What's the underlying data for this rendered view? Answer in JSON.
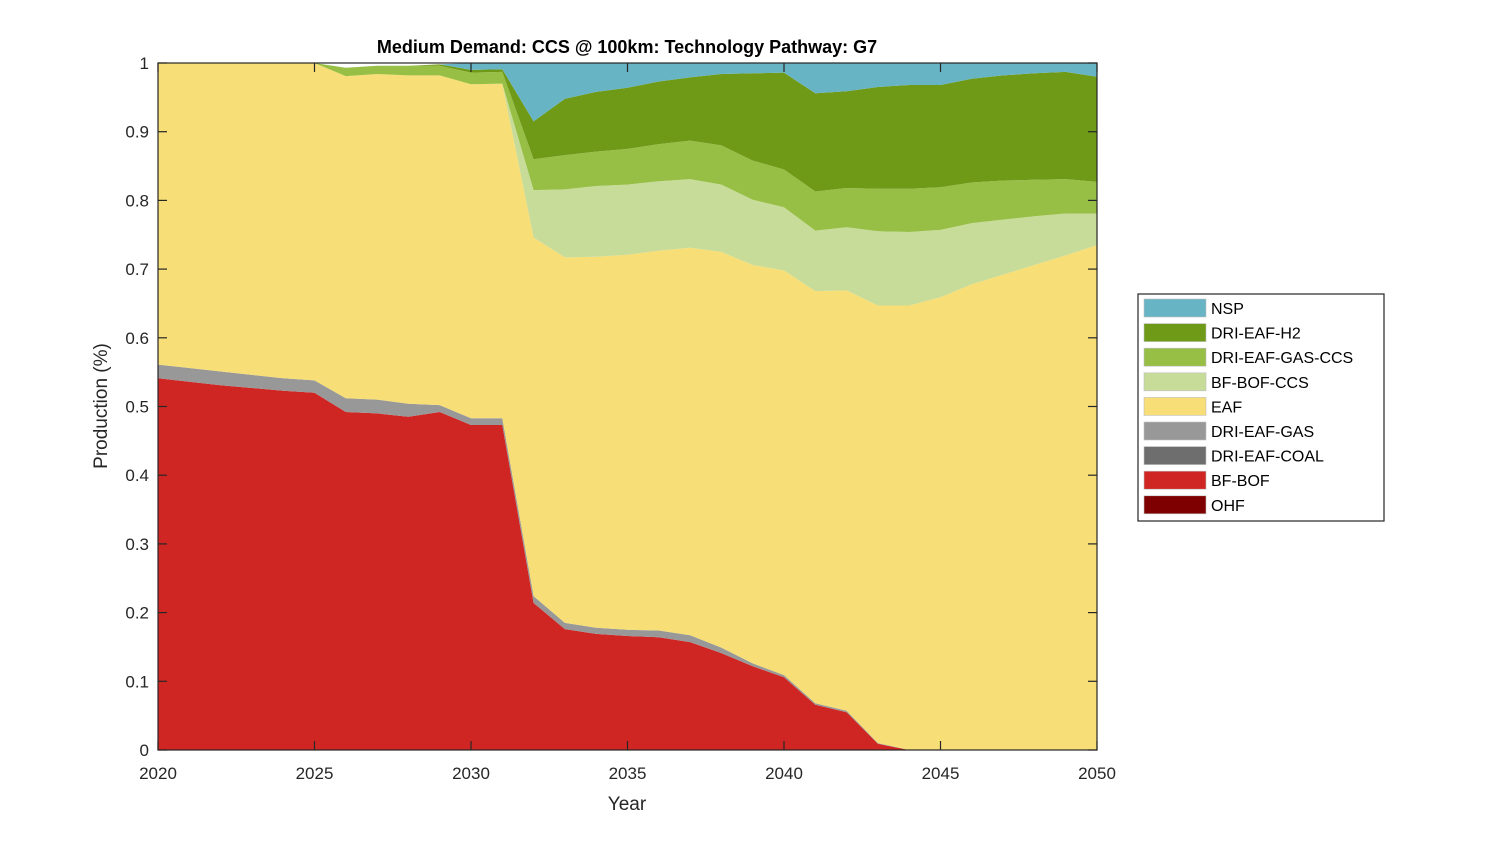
{
  "chart_data": {
    "type": "area",
    "stacked": true,
    "title": "Medium Demand: CCS @ 100km: Technology Pathway: G7",
    "xlabel": "Year",
    "ylabel": "Production (%)",
    "xlim": [
      2020,
      2050
    ],
    "ylim": [
      0,
      1
    ],
    "xticks": [
      2020,
      2025,
      2030,
      2035,
      2040,
      2045,
      2050
    ],
    "xtick_labels": [
      "2020",
      "2025",
      "2030",
      "2035",
      "2040",
      "2045",
      "2050"
    ],
    "yticks": [
      0,
      0.1,
      0.2,
      0.3,
      0.4,
      0.5,
      0.6,
      0.7,
      0.8,
      0.9,
      1
    ],
    "ytick_labels": [
      "0",
      "0.1",
      "0.2",
      "0.3",
      "0.4",
      "0.5",
      "0.6",
      "0.7",
      "0.8",
      "0.9",
      "1"
    ],
    "grid": false,
    "legend_position": "right",
    "x": [
      2020,
      2021,
      2022,
      2023,
      2024,
      2025,
      2026,
      2027,
      2028,
      2029,
      2030,
      2031,
      2032,
      2033,
      2034,
      2035,
      2036,
      2037,
      2038,
      2039,
      2040,
      2041,
      2042,
      2043,
      2044,
      2045,
      2046,
      2047,
      2048,
      2049,
      2050
    ],
    "series": [
      {
        "name": "OHF",
        "color": "#7f0000",
        "values": [
          0,
          0,
          0,
          0,
          0,
          0,
          0,
          0,
          0,
          0,
          0,
          0,
          0,
          0,
          0,
          0,
          0,
          0,
          0,
          0,
          0,
          0,
          0,
          0,
          0,
          0,
          0,
          0,
          0,
          0,
          0
        ]
      },
      {
        "name": "BF-BOF",
        "color": "#d02623",
        "values": [
          0.541,
          0.536,
          0.531,
          0.527,
          0.523,
          0.52,
          0.492,
          0.49,
          0.485,
          0.492,
          0.473,
          0.473,
          0.214,
          0.176,
          0.169,
          0.166,
          0.164,
          0.157,
          0.141,
          0.122,
          0.106,
          0.066,
          0.055,
          0.009,
          0,
          0,
          0,
          0,
          0,
          0,
          0
        ]
      },
      {
        "name": "DRI-EAF-COAL",
        "color": "#6e6e6e",
        "values": [
          0,
          0,
          0,
          0,
          0,
          0,
          0,
          0,
          0,
          0,
          0,
          0,
          0,
          0,
          0,
          0,
          0,
          0,
          0,
          0,
          0,
          0,
          0,
          0,
          0,
          0,
          0,
          0,
          0,
          0,
          0
        ]
      },
      {
        "name": "DRI-EAF-GAS",
        "color": "#989898",
        "values": [
          0.02,
          0.02,
          0.02,
          0.019,
          0.018,
          0.018,
          0.02,
          0.02,
          0.019,
          0.01,
          0.01,
          0.01,
          0.01,
          0.009,
          0.009,
          0.009,
          0.01,
          0.01,
          0.008,
          0.004,
          0.003,
          0.002,
          0.002,
          0.001,
          0,
          0,
          0,
          0,
          0,
          0,
          0
        ]
      },
      {
        "name": "EAF",
        "color": "#f7de76",
        "values": [
          0.439,
          0.444,
          0.449,
          0.454,
          0.459,
          0.462,
          0.469,
          0.474,
          0.478,
          0.48,
          0.486,
          0.487,
          0.522,
          0.532,
          0.54,
          0.546,
          0.553,
          0.564,
          0.576,
          0.58,
          0.589,
          0.6,
          0.612,
          0.637,
          0.647,
          0.659,
          0.678,
          0.692,
          0.706,
          0.72,
          0.735
        ]
      },
      {
        "name": "BF-BOF-CCS",
        "color": "#c8dc99",
        "values": [
          0,
          0,
          0,
          0,
          0,
          0,
          0,
          0,
          0,
          0,
          0,
          0,
          0.069,
          0.099,
          0.103,
          0.102,
          0.101,
          0.1,
          0.098,
          0.095,
          0.092,
          0.088,
          0.092,
          0.108,
          0.107,
          0.098,
          0.089,
          0.08,
          0.071,
          0.061,
          0.046
        ]
      },
      {
        "name": "DRI-EAF-GAS-CCS",
        "color": "#97bf46",
        "values": [
          0,
          0,
          0,
          0,
          0,
          0,
          0.012,
          0.012,
          0.014,
          0.014,
          0.017,
          0.017,
          0.045,
          0.05,
          0.05,
          0.052,
          0.054,
          0.056,
          0.057,
          0.057,
          0.055,
          0.057,
          0.057,
          0.062,
          0.063,
          0.062,
          0.059,
          0.057,
          0.053,
          0.05,
          0.046
        ]
      },
      {
        "name": "DRI-EAF-H2",
        "color": "#6f9a18",
        "values": [
          0,
          0,
          0,
          0,
          0,
          0,
          0,
          0,
          0,
          0.002,
          0.004,
          0.004,
          0.055,
          0.082,
          0.087,
          0.089,
          0.091,
          0.092,
          0.104,
          0.127,
          0.141,
          0.143,
          0.141,
          0.148,
          0.151,
          0.149,
          0.151,
          0.153,
          0.155,
          0.156,
          0.153
        ]
      },
      {
        "name": "NSP",
        "color": "#66b4c4",
        "values": [
          0,
          0,
          0,
          0,
          0,
          0,
          0,
          0,
          0,
          0,
          0.01,
          0.01,
          0.085,
          0.052,
          0.042,
          0.036,
          0.027,
          0.021,
          0.016,
          0.015,
          0.014,
          0.044,
          0.041,
          0.035,
          0.032,
          0.032,
          0.023,
          0.021,
          0.02,
          0.021,
          0.02
        ]
      }
    ],
    "legend_order": [
      "NSP",
      "DRI-EAF-H2",
      "DRI-EAF-GAS-CCS",
      "BF-BOF-CCS",
      "EAF",
      "DRI-EAF-GAS",
      "DRI-EAF-COAL",
      "BF-BOF",
      "OHF"
    ]
  }
}
